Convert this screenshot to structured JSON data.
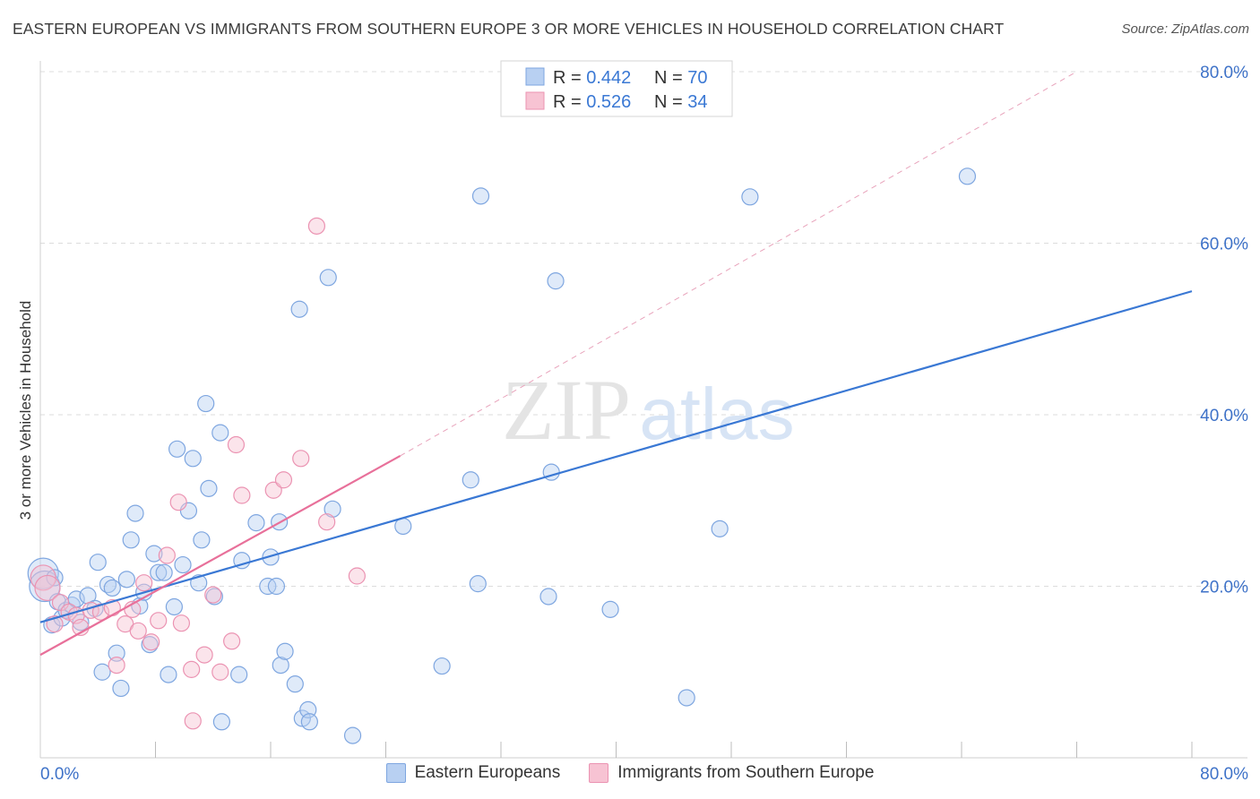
{
  "header": {
    "title": "EASTERN EUROPEAN VS IMMIGRANTS FROM SOUTHERN EUROPE 3 OR MORE VEHICLES IN HOUSEHOLD CORRELATION CHART",
    "source": "Source: ZipAtlas.com"
  },
  "watermark": {
    "zip": "ZIP",
    "atlas": "atlas"
  },
  "legend_top": {
    "rows": [
      {
        "r_label": "R = ",
        "r_value": "0.442",
        "n_label": "N = ",
        "n_value": "70"
      },
      {
        "r_label": "R = ",
        "r_value": "0.526",
        "n_label": "N = ",
        "n_value": "34"
      }
    ]
  },
  "chart_data": {
    "type": "scatter",
    "title": "EASTERN EUROPEAN VS IMMIGRANTS FROM SOUTHERN EUROPE 3 OR MORE VEHICLES IN HOUSEHOLD CORRELATION CHART",
    "xlabel": "",
    "ylabel": "3 or more Vehicles in Household",
    "xlim": [
      0,
      80
    ],
    "ylim": [
      0,
      80
    ],
    "x_tick_labels": [
      "0.0%",
      "80.0%"
    ],
    "y_tick_labels": [
      "20.0%",
      "40.0%",
      "60.0%",
      "80.0%"
    ],
    "y_ticks": [
      20,
      40,
      60,
      80
    ],
    "colors": {
      "blue": "#3a78d4",
      "blue_fill": "#b8d0f2",
      "pink": "#e8709a",
      "pink_fill": "#f7c3d3",
      "tick": "#3e72c8"
    },
    "series": [
      {
        "name": "Eastern Europeans",
        "color": "#3a78d4",
        "r": 0.442,
        "n": 70,
        "trend": {
          "x": [
            0,
            80
          ],
          "y": [
            15.8,
            54.4
          ]
        },
        "points": [
          [
            0.2,
            21.5
          ],
          [
            0.3,
            20.0
          ],
          [
            0.8,
            15.5
          ],
          [
            1.2,
            18.2
          ],
          [
            1.5,
            16.3
          ],
          [
            1.8,
            17.2
          ],
          [
            2.2,
            17.8
          ],
          [
            2.5,
            18.5
          ],
          [
            2.8,
            15.8
          ],
          [
            3.3,
            18.9
          ],
          [
            3.8,
            17.4
          ],
          [
            4.0,
            22.8
          ],
          [
            4.3,
            10.0
          ],
          [
            4.7,
            20.2
          ],
          [
            5.0,
            19.8
          ],
          [
            5.3,
            12.2
          ],
          [
            5.6,
            8.1
          ],
          [
            6.0,
            20.8
          ],
          [
            6.3,
            25.4
          ],
          [
            6.6,
            28.5
          ],
          [
            6.9,
            17.7
          ],
          [
            7.2,
            19.3
          ],
          [
            7.6,
            13.2
          ],
          [
            7.9,
            23.8
          ],
          [
            8.2,
            21.6
          ],
          [
            8.6,
            21.6
          ],
          [
            8.9,
            9.7
          ],
          [
            9.3,
            17.6
          ],
          [
            9.5,
            36.0
          ],
          [
            9.9,
            22.5
          ],
          [
            10.3,
            28.8
          ],
          [
            10.6,
            34.9
          ],
          [
            11.0,
            20.4
          ],
          [
            11.2,
            25.4
          ],
          [
            11.7,
            31.4
          ],
          [
            12.1,
            18.8
          ],
          [
            12.5,
            37.9
          ],
          [
            11.5,
            41.3
          ],
          [
            12.6,
            4.2
          ],
          [
            13.8,
            9.7
          ],
          [
            14.0,
            23.0
          ],
          [
            15.0,
            27.4
          ],
          [
            15.8,
            20.0
          ],
          [
            16.0,
            23.4
          ],
          [
            16.4,
            20.0
          ],
          [
            16.6,
            27.5
          ],
          [
            16.7,
            10.8
          ],
          [
            17.0,
            12.4
          ],
          [
            17.7,
            8.6
          ],
          [
            18.0,
            52.3
          ],
          [
            18.2,
            4.6
          ],
          [
            18.6,
            5.6
          ],
          [
            18.7,
            4.2
          ],
          [
            20.0,
            56.0
          ],
          [
            20.3,
            29.0
          ],
          [
            21.7,
            2.6
          ],
          [
            25.2,
            27.0
          ],
          [
            27.9,
            10.7
          ],
          [
            29.9,
            32.4
          ],
          [
            30.6,
            65.5
          ],
          [
            30.4,
            20.3
          ],
          [
            35.5,
            33.3
          ],
          [
            35.3,
            18.8
          ],
          [
            35.8,
            55.6
          ],
          [
            39.6,
            17.3
          ],
          [
            44.9,
            7.0
          ],
          [
            47.2,
            26.7
          ],
          [
            49.3,
            65.4
          ],
          [
            64.4,
            67.8
          ],
          [
            1.0,
            21.0
          ]
        ]
      },
      {
        "name": "Immigrants from Southern Europe",
        "color": "#e8709a",
        "r": 0.526,
        "n": 34,
        "trend": {
          "x": [
            0,
            25
          ],
          "y": [
            12.0,
            35.2
          ]
        },
        "trend_ext": {
          "x": [
            25,
            72
          ],
          "y": [
            35.2,
            80.0
          ]
        },
        "points": [
          [
            0.2,
            21.0
          ],
          [
            0.5,
            19.8
          ],
          [
            1.0,
            15.6
          ],
          [
            1.4,
            18.1
          ],
          [
            2.0,
            17.0
          ],
          [
            2.5,
            16.6
          ],
          [
            2.8,
            15.2
          ],
          [
            3.5,
            17.2
          ],
          [
            4.2,
            17.0
          ],
          [
            5.0,
            17.5
          ],
          [
            5.3,
            10.8
          ],
          [
            5.9,
            15.6
          ],
          [
            6.4,
            17.3
          ],
          [
            6.8,
            14.8
          ],
          [
            7.2,
            20.4
          ],
          [
            7.7,
            13.5
          ],
          [
            8.2,
            16.0
          ],
          [
            8.8,
            23.6
          ],
          [
            9.6,
            29.8
          ],
          [
            9.8,
            15.7
          ],
          [
            10.5,
            10.3
          ],
          [
            10.6,
            4.3
          ],
          [
            11.4,
            12.0
          ],
          [
            12.0,
            19.0
          ],
          [
            12.5,
            10.0
          ],
          [
            13.3,
            13.6
          ],
          [
            13.6,
            36.5
          ],
          [
            14.0,
            30.6
          ],
          [
            16.2,
            31.2
          ],
          [
            16.9,
            32.4
          ],
          [
            18.1,
            34.9
          ],
          [
            19.2,
            62.0
          ],
          [
            19.9,
            27.5
          ],
          [
            22.0,
            21.2
          ]
        ]
      }
    ]
  },
  "bottom_legend": [
    "Eastern Europeans",
    "Immigrants from Southern Europe"
  ]
}
